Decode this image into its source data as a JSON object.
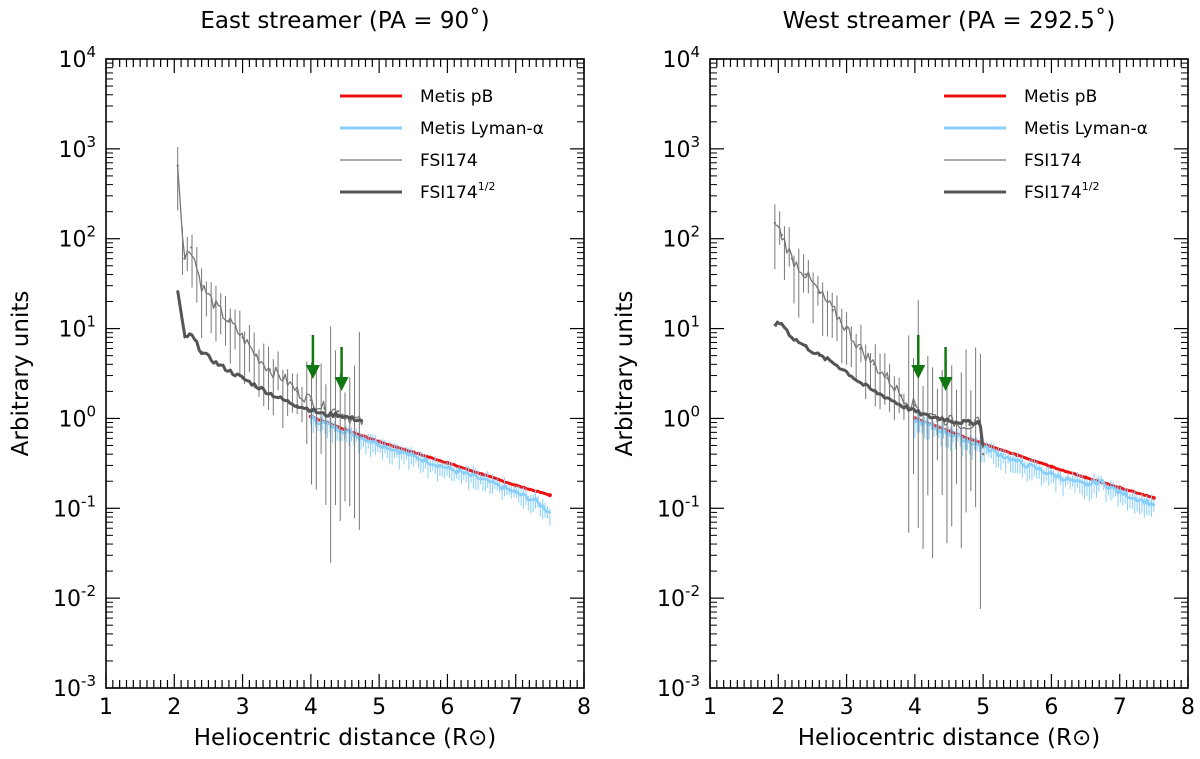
{
  "chart_data": [
    {
      "type": "line",
      "title": "East streamer (PA = 90˚)",
      "xlabel": "Heliocentric distance (R⊙)",
      "ylabel": "Arbitrary units",
      "xlim": [
        1,
        8
      ],
      "ylim": [
        0.001,
        10000
      ],
      "yscale": "log",
      "xticks": [
        "1",
        "2",
        "3",
        "4",
        "5",
        "6",
        "7",
        "8"
      ],
      "yticks": [
        {
          "base": "10",
          "exp": "-3"
        },
        {
          "base": "10",
          "exp": "-2"
        },
        {
          "base": "10",
          "exp": "-1"
        },
        {
          "base": "10",
          "exp": "0"
        },
        {
          "base": "10",
          "exp": "1"
        },
        {
          "base": "10",
          "exp": "2"
        },
        {
          "base": "10",
          "exp": "3"
        },
        {
          "base": "10",
          "exp": "4"
        }
      ],
      "legend": [
        {
          "label": "Metis pB",
          "color": "#ee1111"
        },
        {
          "label": "Metis Lyman-α",
          "color": "#87cefa"
        },
        {
          "label": "FSI174",
          "color": "#777777"
        },
        {
          "label": "FSI174",
          "sup": "1/2",
          "color": "#555555"
        }
      ],
      "arrows_x": [
        4.03,
        4.45
      ],
      "series": [
        {
          "name": "Metis pB",
          "color": "#ee1111",
          "x": [
            4.0,
            4.5,
            5.0,
            5.5,
            6.0,
            6.5,
            7.0,
            7.5
          ],
          "y": [
            1.05,
            0.75,
            0.55,
            0.42,
            0.32,
            0.24,
            0.18,
            0.14
          ]
        },
        {
          "name": "Metis Lyman-α",
          "color": "#87cefa",
          "x": [
            4.0,
            4.5,
            5.0,
            5.5,
            6.0,
            6.5,
            7.0,
            7.3,
            7.5
          ],
          "y": [
            1.0,
            0.72,
            0.52,
            0.38,
            0.28,
            0.21,
            0.15,
            0.12,
            0.09
          ]
        },
        {
          "name": "FSI174",
          "color": "#777777",
          "x": [
            2.05,
            2.15,
            2.25,
            2.4,
            2.6,
            2.8,
            3.0,
            3.2,
            3.4,
            3.6,
            3.8,
            4.0,
            4.2,
            4.4,
            4.6,
            4.75
          ],
          "y": [
            650,
            60,
            80,
            30,
            18,
            12,
            8,
            5,
            3.5,
            2.8,
            2.0,
            1.6,
            1.3,
            1.2,
            1.0,
            0.9
          ]
        },
        {
          "name": "FSI174^1/2",
          "color": "#555555",
          "x": [
            2.05,
            2.15,
            2.25,
            2.4,
            2.6,
            2.8,
            3.0,
            3.2,
            3.4,
            3.6,
            3.8,
            4.0,
            4.2,
            4.4,
            4.6,
            4.75
          ],
          "y": [
            26,
            8,
            8.5,
            5.5,
            4.2,
            3.4,
            2.8,
            2.3,
            1.9,
            1.6,
            1.4,
            1.25,
            1.1,
            1.1,
            1.0,
            0.95
          ]
        }
      ]
    },
    {
      "type": "line",
      "title": "West streamer (PA = 292.5˚)",
      "xlabel": "Heliocentric distance (R⊙)",
      "ylabel": "Arbitrary units",
      "xlim": [
        1,
        8
      ],
      "ylim": [
        0.001,
        10000
      ],
      "yscale": "log",
      "xticks": [
        "1",
        "2",
        "3",
        "4",
        "5",
        "6",
        "7",
        "8"
      ],
      "yticks": [
        {
          "base": "10",
          "exp": "-3"
        },
        {
          "base": "10",
          "exp": "-2"
        },
        {
          "base": "10",
          "exp": "-1"
        },
        {
          "base": "10",
          "exp": "0"
        },
        {
          "base": "10",
          "exp": "1"
        },
        {
          "base": "10",
          "exp": "2"
        },
        {
          "base": "10",
          "exp": "3"
        },
        {
          "base": "10",
          "exp": "4"
        }
      ],
      "legend": [
        {
          "label": "Metis pB",
          "color": "#ee1111"
        },
        {
          "label": "Metis Lyman-α",
          "color": "#87cefa"
        },
        {
          "label": "FSI174",
          "color": "#777777"
        },
        {
          "label": "FSI174",
          "sup": "1/2",
          "color": "#555555"
        }
      ],
      "arrows_x": [
        4.05,
        4.45
      ],
      "series": [
        {
          "name": "Metis pB",
          "color": "#ee1111",
          "x": [
            4.0,
            4.5,
            5.0,
            5.5,
            6.0,
            6.5,
            7.0,
            7.5
          ],
          "y": [
            1.0,
            0.72,
            0.52,
            0.39,
            0.29,
            0.22,
            0.17,
            0.13
          ]
        },
        {
          "name": "Metis Lyman-α",
          "color": "#87cefa",
          "x": [
            4.0,
            4.5,
            5.0,
            5.5,
            6.0,
            6.5,
            6.7,
            7.0,
            7.5
          ],
          "y": [
            0.95,
            0.68,
            0.48,
            0.33,
            0.24,
            0.18,
            0.2,
            0.15,
            0.11
          ]
        },
        {
          "name": "FSI174",
          "color": "#777777",
          "x": [
            1.95,
            2.05,
            2.2,
            2.4,
            2.6,
            2.8,
            3.0,
            3.2,
            3.4,
            3.6,
            3.8,
            4.0,
            4.2,
            4.4,
            4.6,
            4.8,
            4.95,
            5.0
          ],
          "y": [
            150,
            110,
            60,
            40,
            25,
            16,
            10,
            6,
            4,
            2.8,
            1.8,
            1.4,
            1.1,
            1.0,
            0.9,
            0.85,
            0.9,
            0.4
          ]
        },
        {
          "name": "FSI174^1/2",
          "color": "#555555",
          "x": [
            1.95,
            2.05,
            2.2,
            2.4,
            2.6,
            2.8,
            3.0,
            3.2,
            3.4,
            3.6,
            3.8,
            4.0,
            4.2,
            4.4,
            4.6,
            4.8,
            4.95,
            5.0
          ],
          "y": [
            11,
            11.5,
            8,
            6.3,
            5,
            4.2,
            3.3,
            2.5,
            2.0,
            1.7,
            1.4,
            1.2,
            1.05,
            1.0,
            0.92,
            0.9,
            0.92,
            0.5
          ]
        }
      ]
    }
  ]
}
